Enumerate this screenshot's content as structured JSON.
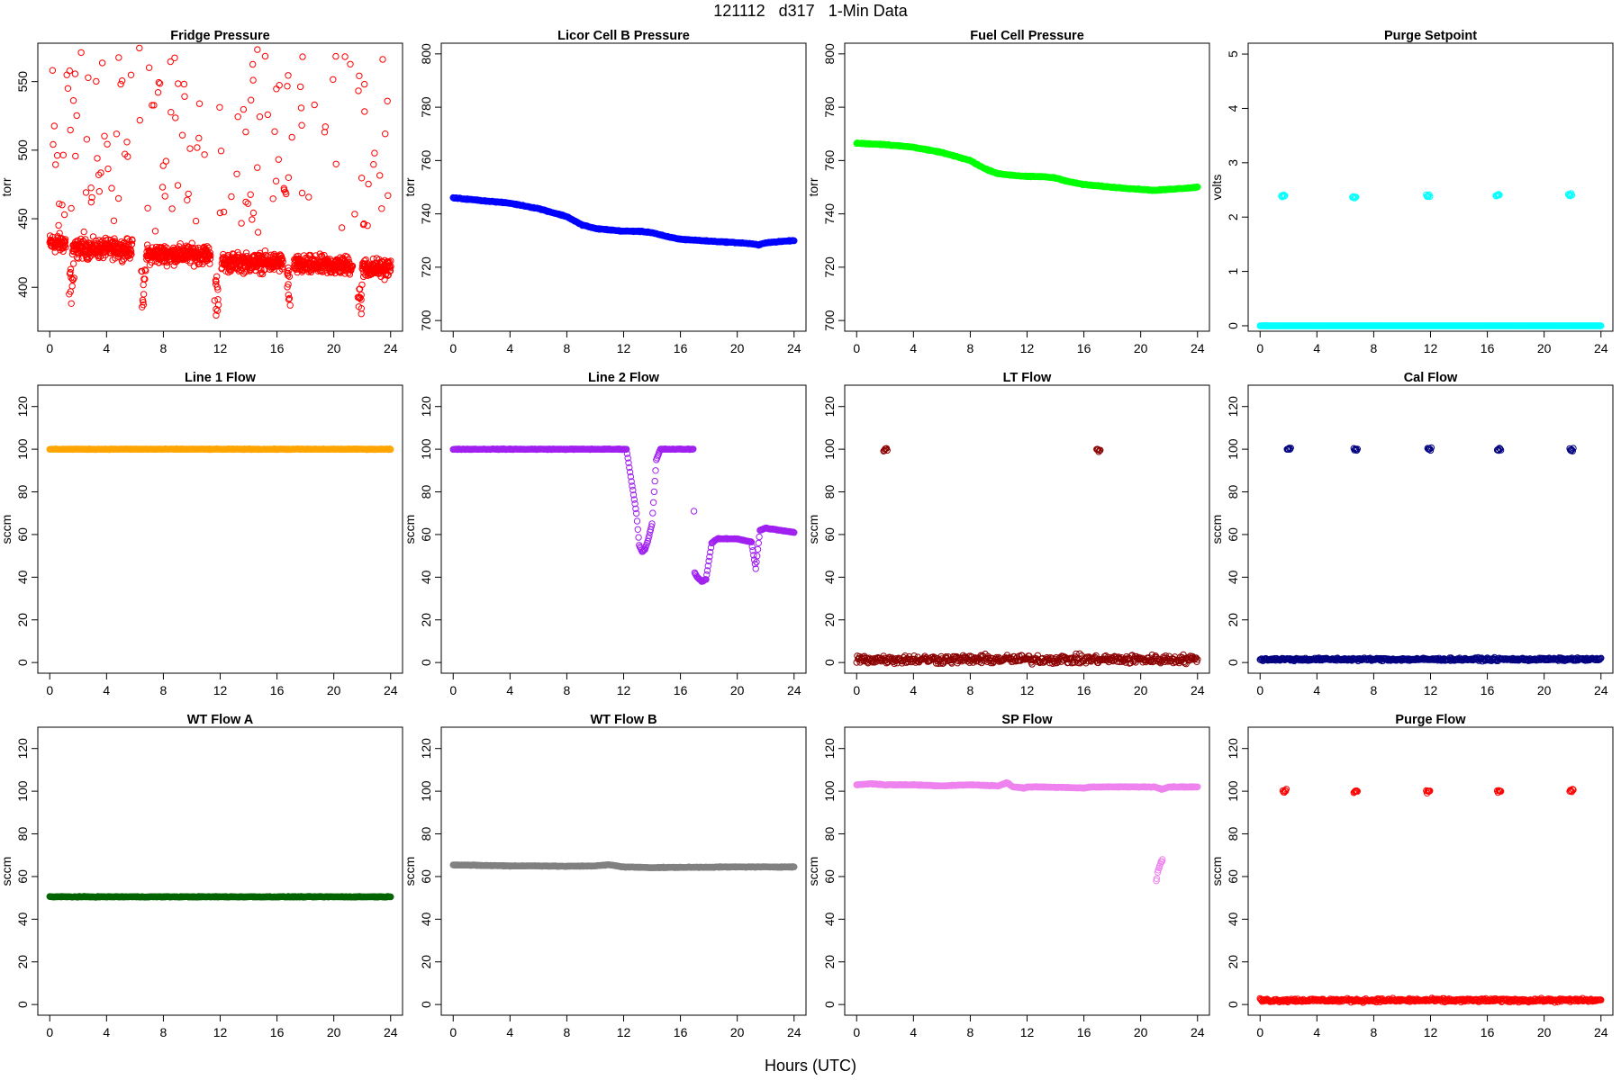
{
  "figure": {
    "title": "121112   d317   1-Min Data",
    "xlabel": "Hours (UTC)"
  },
  "chart_data": [
    {
      "id": "fridge-pressure",
      "type": "scatter",
      "title": "Fridge Pressure",
      "ylabel": "torr",
      "color": "#ff0000",
      "xlim": [
        0,
        24
      ],
      "ylim": [
        368,
        578
      ],
      "xticks": [
        0,
        4,
        8,
        12,
        16,
        20,
        24
      ],
      "yticks": [
        400,
        450,
        500,
        550
      ],
      "series_description": "baseline ~405-440 torr with dips near 1.5, 6.5, 11.8, 16.8, 21.8 h; scattered points 440-575 torr",
      "segments": [
        [
          0.0,
          1.1,
          432
        ],
        [
          1.6,
          5.8,
          428
        ],
        [
          6.8,
          11.3,
          424
        ],
        [
          12.1,
          16.4,
          418
        ],
        [
          17.2,
          21.3,
          416
        ],
        [
          22.0,
          24.0,
          414
        ]
      ],
      "dips": [
        [
          1.55,
          388
        ],
        [
          6.6,
          384
        ],
        [
          11.75,
          378
        ],
        [
          16.8,
          386
        ],
        [
          21.85,
          373
        ]
      ]
    },
    {
      "id": "licor-cell-b-pressure",
      "type": "scatter",
      "title": "Licor Cell B Pressure",
      "ylabel": "torr",
      "color": "#0000ff",
      "xlim": [
        0,
        24
      ],
      "ylim": [
        696,
        804
      ],
      "xticks": [
        0,
        4,
        8,
        12,
        16,
        20,
        24
      ],
      "yticks": [
        700,
        720,
        740,
        760,
        780,
        800
      ],
      "x": [
        0,
        2,
        4,
        6,
        8,
        9,
        10,
        11,
        12,
        13,
        14,
        15,
        16,
        18,
        20,
        21,
        21.5,
        22,
        24
      ],
      "y": [
        746,
        745,
        744,
        742,
        739,
        736,
        734.5,
        734,
        733.5,
        733.5,
        733,
        731.5,
        730.5,
        729.8,
        729.2,
        728.8,
        728.3,
        729.2,
        730
      ]
    },
    {
      "id": "fuel-cell-pressure",
      "type": "scatter",
      "title": "Fuel Cell Pressure",
      "ylabel": "torr",
      "color": "#00ff00",
      "xlim": [
        0,
        24
      ],
      "ylim": [
        696,
        804
      ],
      "xticks": [
        0,
        4,
        8,
        12,
        16,
        20,
        24
      ],
      "yticks": [
        700,
        720,
        740,
        760,
        780,
        800
      ],
      "x": [
        0,
        2,
        4,
        6,
        8,
        9,
        10,
        11,
        12,
        13,
        14,
        15,
        16,
        18,
        20,
        21,
        22,
        24
      ],
      "y": [
        766.5,
        766,
        765,
        763,
        760,
        757,
        755,
        754.5,
        754,
        754,
        753.5,
        752,
        751,
        750,
        749.2,
        748.8,
        749.2,
        750
      ]
    },
    {
      "id": "purge-setpoint",
      "type": "scatter",
      "title": "Purge Setpoint",
      "ylabel": "volts",
      "color": "#00ffff",
      "xlim": [
        0,
        24
      ],
      "ylim": [
        -0.1,
        5.2
      ],
      "xticks": [
        0,
        4,
        8,
        12,
        16,
        20,
        24
      ],
      "yticks": [
        0,
        1,
        2,
        3,
        4,
        5
      ],
      "baseline": 0,
      "clusters": [
        [
          1.5,
          2.4
        ],
        [
          6.5,
          2.37
        ],
        [
          11.7,
          2.4
        ],
        [
          16.6,
          2.4
        ],
        [
          21.7,
          2.4
        ]
      ]
    },
    {
      "id": "line-1-flow",
      "type": "scatter",
      "title": "Line 1 Flow",
      "ylabel": "sccm",
      "color": "#ffa500",
      "xlim": [
        0,
        24
      ],
      "ylim": [
        -5,
        130
      ],
      "xticks": [
        0,
        4,
        8,
        12,
        16,
        20,
        24
      ],
      "yticks": [
        0,
        20,
        40,
        60,
        80,
        100,
        120
      ],
      "x": [
        0,
        24
      ],
      "y": [
        100,
        100
      ]
    },
    {
      "id": "line-2-flow",
      "type": "scatter",
      "title": "Line 2 Flow",
      "ylabel": "sccm",
      "color": "#a020f0",
      "xlim": [
        0,
        24
      ],
      "ylim": [
        -5,
        130
      ],
      "xticks": [
        0,
        4,
        8,
        12,
        16,
        20,
        24
      ],
      "yticks": [
        0,
        20,
        40,
        60,
        80,
        100,
        120
      ],
      "x": [
        0,
        12.2,
        12.9,
        13.1,
        13.3,
        13.5,
        13.7,
        14.0,
        14.3,
        14.6,
        16.9,
        17.0,
        17.2,
        17.5,
        17.8,
        18.2,
        18.6,
        19.2,
        20.0,
        21.0,
        21.3,
        21.6,
        22.0,
        23.0,
        24.0
      ],
      "y": [
        100,
        100,
        70,
        55,
        52,
        53,
        57,
        65,
        95,
        100,
        100,
        42,
        40,
        38,
        39,
        56,
        58,
        58,
        58,
        56.5,
        44,
        62,
        63,
        62,
        61
      ]
    },
    {
      "id": "lt-flow",
      "type": "scatter",
      "title": "LT Flow",
      "ylabel": "sccm",
      "color": "#8b0000",
      "xlim": [
        0,
        24
      ],
      "ylim": [
        -5,
        130
      ],
      "xticks": [
        0,
        4,
        8,
        12,
        16,
        20,
        24
      ],
      "yticks": [
        0,
        20,
        40,
        60,
        80,
        100,
        120
      ],
      "baseline": 1.5,
      "baseline_spread": 3,
      "clusters": [
        [
          1.9,
          100
        ],
        [
          16.9,
          99.5
        ]
      ]
    },
    {
      "id": "cal-flow",
      "type": "scatter",
      "title": "Cal Flow",
      "ylabel": "sccm",
      "color": "#000080",
      "xlim": [
        0,
        24
      ],
      "ylim": [
        -5,
        130
      ],
      "xticks": [
        0,
        4,
        8,
        12,
        16,
        20,
        24
      ],
      "yticks": [
        0,
        20,
        40,
        60,
        80,
        100,
        120
      ],
      "baseline": 1.5,
      "baseline_spread": 1,
      "clusters": [
        [
          1.9,
          100
        ],
        [
          6.6,
          100
        ],
        [
          11.8,
          100
        ],
        [
          16.7,
          100
        ],
        [
          21.8,
          100
        ]
      ]
    },
    {
      "id": "wt-flow-a",
      "type": "scatter",
      "title": "WT Flow A",
      "ylabel": "sccm",
      "color": "#006400",
      "xlim": [
        0,
        24
      ],
      "ylim": [
        -5,
        130
      ],
      "xticks": [
        0,
        4,
        8,
        12,
        16,
        20,
        24
      ],
      "yticks": [
        0,
        20,
        40,
        60,
        80,
        100,
        120
      ],
      "x": [
        0,
        24
      ],
      "y": [
        50.5,
        50.5
      ]
    },
    {
      "id": "wt-flow-b",
      "type": "scatter",
      "title": "WT Flow B",
      "ylabel": "sccm",
      "color": "#808080",
      "xlim": [
        0,
        24
      ],
      "ylim": [
        -5,
        130
      ],
      "xticks": [
        0,
        4,
        8,
        12,
        16,
        20,
        24
      ],
      "yticks": [
        0,
        20,
        40,
        60,
        80,
        100,
        120
      ],
      "x": [
        0,
        2,
        4,
        6,
        8,
        10,
        11,
        12,
        14,
        16,
        18,
        20,
        22,
        24
      ],
      "y": [
        65.5,
        65.2,
        65,
        65,
        64.8,
        65,
        65.5,
        64.5,
        64.2,
        64.3,
        64.4,
        64.5,
        64.5,
        64.5
      ]
    },
    {
      "id": "sp-flow",
      "type": "scatter",
      "title": "SP Flow",
      "ylabel": "sccm",
      "color": "#ee82ee",
      "xlim": [
        0,
        24
      ],
      "ylim": [
        -5,
        130
      ],
      "xticks": [
        0,
        4,
        8,
        12,
        16,
        20,
        24
      ],
      "yticks": [
        0,
        20,
        40,
        60,
        80,
        100,
        120
      ],
      "x": [
        0,
        1,
        2,
        4,
        6,
        8,
        10,
        10.6,
        11,
        11.8,
        12,
        13,
        16,
        16.5,
        20,
        21,
        21.5,
        22,
        24
      ],
      "y": [
        103,
        103.5,
        103,
        103,
        102.5,
        103,
        102.5,
        104,
        102,
        101.5,
        102,
        102,
        101.5,
        102,
        102,
        102,
        101,
        102,
        102
      ],
      "excursion": {
        "x": [
          21.1,
          21.2,
          21.3,
          21.4,
          21.5
        ],
        "y": [
          58,
          62,
          64,
          66,
          67
        ]
      }
    },
    {
      "id": "purge-flow",
      "type": "scatter",
      "title": "Purge Flow",
      "ylabel": "sccm",
      "color": "#ff0000",
      "xlim": [
        0,
        24
      ],
      "ylim": [
        -5,
        130
      ],
      "xticks": [
        0,
        4,
        8,
        12,
        16,
        20,
        24
      ],
      "yticks": [
        0,
        20,
        40,
        60,
        80,
        100,
        120
      ],
      "baseline": 2,
      "baseline_spread": 1.2,
      "clusters": [
        [
          1.6,
          100
        ],
        [
          6.6,
          100
        ],
        [
          11.7,
          100
        ],
        [
          16.7,
          100
        ],
        [
          21.8,
          100
        ]
      ]
    }
  ]
}
